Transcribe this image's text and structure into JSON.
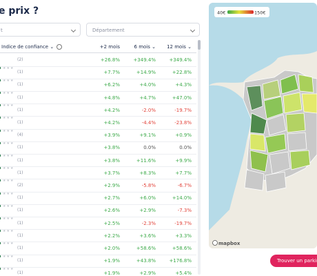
{
  "header": {
    "title": "e prix ?",
    "select_left": "t",
    "select_right": "Département"
  },
  "table": {
    "columns": [
      "Indice de confiance",
      "+2 mois",
      "6 mois",
      "12 mois"
    ],
    "rows": [
      [
        "(2)",
        "+26.8%",
        "+349.4%",
        "+349.4%"
      ],
      [
        "(1)",
        "+7.7%",
        "+14.9%",
        "+22.8%"
      ],
      [
        "(1)",
        "+6.2%",
        "+4.0%",
        "+4.3%"
      ],
      [
        "(1)",
        "+4.8%",
        "+4.7%",
        "+47.0%"
      ],
      [
        "(1)",
        "+4.2%",
        "-2.0%",
        "-19.7%"
      ],
      [
        "(1)",
        "+4.2%",
        "-4.4%",
        "-23.8%"
      ],
      [
        "(4)",
        "+3.9%",
        "+9.1%",
        "+0.9%"
      ],
      [
        "(1)",
        "+3.8%",
        "0.0%",
        "0.0%"
      ],
      [
        "(1)",
        "+3.8%",
        "+11.6%",
        "+9.9%"
      ],
      [
        "(1)",
        "+3.7%",
        "+8.3%",
        "+7.7%"
      ],
      [
        "(2)",
        "+2.9%",
        "-5.8%",
        "-6.7%"
      ],
      [
        "(1)",
        "+2.7%",
        "+6.0%",
        "+14.0%"
      ],
      [
        "(1)",
        "+2.6%",
        "+2.9%",
        "-7.3%"
      ],
      [
        "(1)",
        "+2.5%",
        "-2.3%",
        "-19.7%"
      ],
      [
        "(1)",
        "+2.2%",
        "+3.6%",
        "+3.3%"
      ],
      [
        "(1)",
        "+2.0%",
        "+58.6%",
        "+58.6%"
      ],
      [
        "(1)",
        "+1.9%",
        "+43.8%",
        "+176.8%"
      ],
      [
        "(1)",
        "+1.9%",
        "+2.9%",
        "+5.4%"
      ]
    ]
  },
  "map": {
    "legend_min": "40€",
    "legend_max": "150€",
    "attribution": "mapbox",
    "button": "Trouver un parking"
  }
}
